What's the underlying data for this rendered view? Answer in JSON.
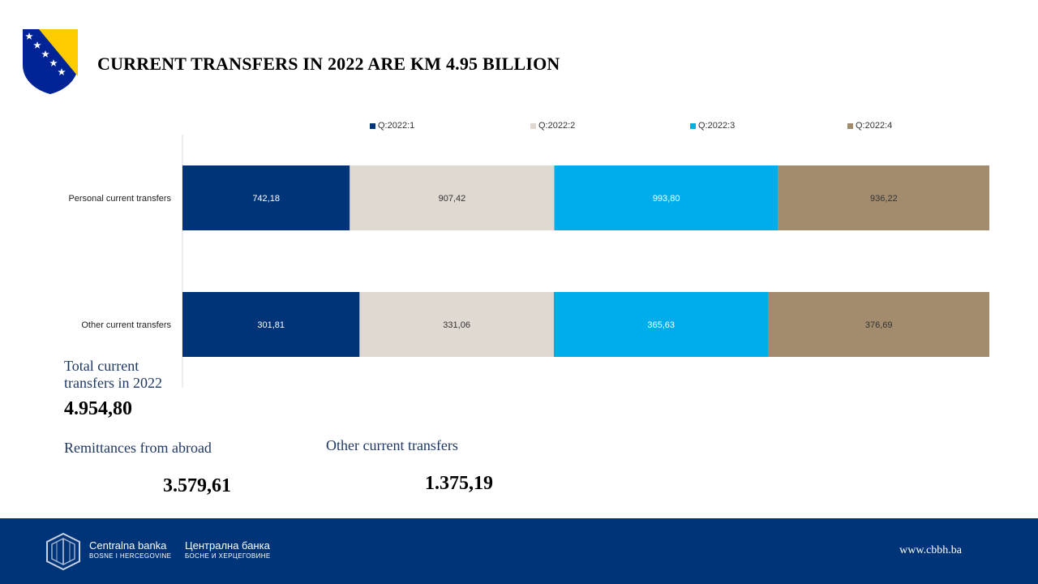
{
  "header": {
    "title": "CURRENT TRANSFERS IN 2022 ARE KM 4.95 BILLION"
  },
  "colors": {
    "q1": "#003478",
    "q2": "#e0d9d2",
    "q3": "#00adeb",
    "q4": "#a38b6d",
    "footer": "#003478",
    "heading_text": "#1f3864"
  },
  "chart_data": {
    "type": "bar",
    "orientation": "horizontal",
    "stacked": true,
    "categories": [
      "Personal current transfers",
      "Other current transfers"
    ],
    "series": [
      {
        "name": "Q:2022:1",
        "values": [
          742.18,
          301.81
        ],
        "labels": [
          "742,18",
          "301,81"
        ],
        "color": "#003478"
      },
      {
        "name": "Q:2022:2",
        "values": [
          907.42,
          331.06
        ],
        "labels": [
          "907,42",
          "331,06"
        ],
        "color": "#e0d9d2"
      },
      {
        "name": "Q:2022:3",
        "values": [
          993.8,
          365.63
        ],
        "labels": [
          "993,80",
          "365,63"
        ],
        "color": "#00adeb"
      },
      {
        "name": "Q:2022:4",
        "values": [
          936.22,
          376.69
        ],
        "labels": [
          "936,22",
          "376,69"
        ],
        "color": "#a38b6d"
      }
    ],
    "percent_stacked": true,
    "legend_position": "top",
    "grid": false,
    "data_labels": true
  },
  "summary": {
    "total_label": "Total current transfers in 2022",
    "total_value": "4.954,80",
    "remittances_label": "Remittances from abroad",
    "remittances_value": "3.579,61",
    "other_label": "Other current transfers",
    "other_value": "1.375,19"
  },
  "footer": {
    "bank_name_latin": "Centralna banka",
    "bank_sub_latin": "BOSNE I HERCEGOVINE",
    "bank_name_cyrillic": "Централна банка",
    "bank_sub_cyrillic": "БОСНЕ И ХЕРЦЕГОВИНЕ",
    "website": "www.cbbh.ba"
  },
  "icons": {
    "coat": "bosnia-coat-of-arms-icon",
    "bank_logo": "cbbh-logo-icon"
  }
}
